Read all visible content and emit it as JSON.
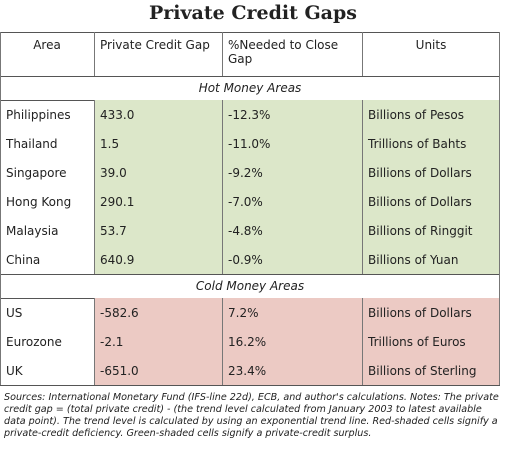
{
  "title": "Private Credit Gaps",
  "header": [
    "Area",
    "Private Credit Gap",
    "%Needed to Close Gap",
    "Units"
  ],
  "sections": [
    {
      "title": "Hot Money Areas",
      "color": "#dce7c9",
      "rows": [
        [
          "Philippines",
          "433.0",
          "-12.3%",
          "Billions of Pesos"
        ],
        [
          "Thailand",
          "1.5",
          "-11.0%",
          "Trillions of Bahts"
        ],
        [
          "Singapore",
          "39.0",
          "-9.2%",
          "Billions of Dollars"
        ],
        [
          "Hong Kong",
          "290.1",
          "-7.0%",
          "Billions of Dollars"
        ],
        [
          "Malaysia",
          "53.7",
          "-4.8%",
          "Billions of Ringgit"
        ],
        [
          "China",
          "640.9",
          "-0.9%",
          "Billions of Yuan"
        ]
      ]
    },
    {
      "title": "Cold Money Areas",
      "color": "#eccac4",
      "rows": [
        [
          "US",
          "-582.6",
          "7.2%",
          "Billions of Dollars"
        ],
        [
          "Eurozone",
          "-2.1",
          "16.2%",
          "Trillions of Euros"
        ],
        [
          "UK",
          "-651.0",
          "23.4%",
          "Billions of Sterling"
        ]
      ]
    }
  ],
  "notes": "Sources: International Monetary Fund (IFS-line 22d), ECB, and author's calculations. Notes: The private credit gap = (total private credit) - (the trend level calculated from January 2003 to latest available data point). The trend level is calculated by using an exponential trend line. Red-shaded cells signify a private-credit deficiency. Green-shaded cells signify a private-credit surplus."
}
